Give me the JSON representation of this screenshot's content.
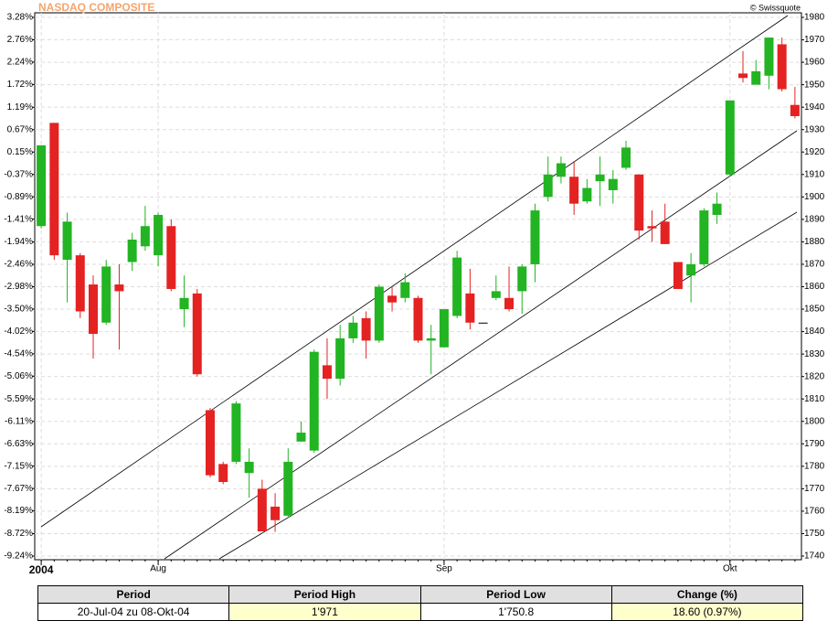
{
  "chart_data": {
    "type": "candlestick",
    "title": "NASDAQ COMPOSITE",
    "credit": "© Swissquote",
    "categories": [
      "2004",
      null,
      null,
      null,
      null,
      null,
      null,
      null,
      null,
      "Aug",
      null,
      null,
      null,
      null,
      null,
      null,
      null,
      null,
      null,
      null,
      null,
      null,
      null,
      null,
      null,
      null,
      null,
      null,
      null,
      null,
      null,
      "Sep",
      null,
      null,
      null,
      null,
      null,
      null,
      null,
      null,
      null,
      null,
      null,
      null,
      null,
      null,
      null,
      null,
      null,
      null,
      null,
      null,
      null,
      "Okt",
      null,
      null,
      null,
      null,
      null
    ],
    "open": [
      1887,
      1933,
      1872,
      1874,
      1861,
      1844,
      1861,
      1871,
      1878,
      1874,
      1887,
      1850,
      1857,
      1805,
      1781,
      1782,
      1777,
      1770,
      1762,
      1758,
      1791,
      1787,
      1825,
      1819,
      1837,
      1846,
      1836,
      1856,
      1855,
      1855,
      1836,
      1833,
      1847,
      1857,
      1844,
      1855,
      1855,
      1858,
      1870,
      1900,
      1909,
      1909,
      1898,
      1907,
      1903,
      1913,
      1910,
      1887,
      1889,
      1871,
      1865,
      1870,
      1892,
      1910,
      1955,
      1950,
      1954,
      1968,
      1941
    ],
    "high": [
      1923,
      1933,
      1893,
      1875,
      1865,
      1872,
      1870,
      1884,
      1896,
      1893,
      1890,
      1865,
      1859,
      1806,
      1782,
      1809,
      1788,
      1774,
      1768,
      1788,
      1800,
      1832,
      1837,
      1843,
      1847,
      1849,
      1861,
      1860,
      1866,
      1856,
      1843,
      1850,
      1876,
      1868,
      1844,
      1865,
      1869,
      1870,
      1897,
      1918,
      1918,
      1916,
      1908,
      1918,
      1912,
      1925,
      1910,
      1894,
      1897,
      1871,
      1875,
      1895,
      1902,
      1943,
      1965,
      1961,
      1971,
      1971,
      1949
    ],
    "low": [
      1886,
      1872,
      1853,
      1846,
      1828,
      1843,
      1832,
      1867,
      1876,
      1869,
      1858,
      1842,
      1820,
      1775,
      1772,
      1781,
      1766,
      1751,
      1750.8,
      1757,
      1791,
      1786,
      1810,
      1816,
      1835,
      1828,
      1835,
      1849,
      1853,
      1835,
      1821,
      1833,
      1846,
      1841,
      1844,
      1854,
      1849,
      1848,
      1862,
      1898,
      1906,
      1892,
      1897,
      1896,
      1897,
      1912,
      1881,
      1880,
      1879,
      1859,
      1853,
      1869,
      1888,
      1909,
      1951,
      1950,
      1948,
      1947,
      1935
    ],
    "close": [
      1923,
      1874,
      1889,
      1849,
      1839,
      1869,
      1858,
      1881,
      1887,
      1892,
      1859,
      1855,
      1821,
      1776,
      1773,
      1808,
      1782,
      1751,
      1756,
      1782,
      1795,
      1831,
      1819,
      1837,
      1844,
      1836,
      1860,
      1853,
      1862,
      1836,
      1837,
      1850,
      1873,
      1844,
      1844,
      1858,
      1850,
      1869,
      1894,
      1910,
      1915,
      1897,
      1904,
      1910,
      1908,
      1922,
      1885,
      1886,
      1879,
      1859,
      1870,
      1894,
      1897,
      1943,
      1953,
      1956,
      1971,
      1948,
      1936
    ],
    "up_color": "#22b422",
    "down_color": "#e42222",
    "ylim": [
      1740,
      1980
    ],
    "yticks": [
      1740,
      1750,
      1760,
      1770,
      1780,
      1790,
      1800,
      1810,
      1820,
      1830,
      1840,
      1850,
      1860,
      1870,
      1880,
      1890,
      1900,
      1910,
      1920,
      1930,
      1940,
      1950,
      1960,
      1970,
      1980
    ],
    "y2lim": [
      -9.24,
      3.28
    ],
    "y2ticks": [
      {
        "value": -9.24,
        "label": "-9.24%"
      },
      {
        "value": -8.72,
        "label": "-8.72%"
      },
      {
        "value": -8.19,
        "label": "-8.19%"
      },
      {
        "value": -7.67,
        "label": "-7.67%"
      },
      {
        "value": -7.15,
        "label": "-7.15%"
      },
      {
        "value": -6.63,
        "label": "-6.63%"
      },
      {
        "value": -6.11,
        "label": "-6.11%"
      },
      {
        "value": -5.59,
        "label": "-5.59%"
      },
      {
        "value": -5.06,
        "label": "-5.06%"
      },
      {
        "value": -4.54,
        "label": "-4.54%"
      },
      {
        "value": -4.02,
        "label": "-4.02%"
      },
      {
        "value": -3.5,
        "label": "-3.50%"
      },
      {
        "value": -2.98,
        "label": "-2.98%"
      },
      {
        "value": -2.46,
        "label": "-2.46%"
      },
      {
        "value": -1.94,
        "label": "-1.94%"
      },
      {
        "value": -1.41,
        "label": "-1.41%"
      },
      {
        "value": -0.89,
        "label": "-0.89%"
      },
      {
        "value": -0.37,
        "label": "-0.37%"
      },
      {
        "value": 0.15,
        "label": "0.15%"
      },
      {
        "value": 0.67,
        "label": "0.67%"
      },
      {
        "value": 1.19,
        "label": "1.19%"
      },
      {
        "value": 1.72,
        "label": "1.72%"
      },
      {
        "value": 2.24,
        "label": "2.24%"
      },
      {
        "value": 2.76,
        "label": "2.76%"
      },
      {
        "value": 3.28,
        "label": "3.28%"
      }
    ],
    "grid": true
  },
  "summary_table": {
    "header": [
      "Period",
      "Period High",
      "Period Low",
      "Change (%)"
    ],
    "rows": [
      [
        "20-Jul-04 zu 08-Okt-04",
        "1'971",
        "1'750.8",
        "18.60 (0.97%)"
      ]
    ]
  }
}
